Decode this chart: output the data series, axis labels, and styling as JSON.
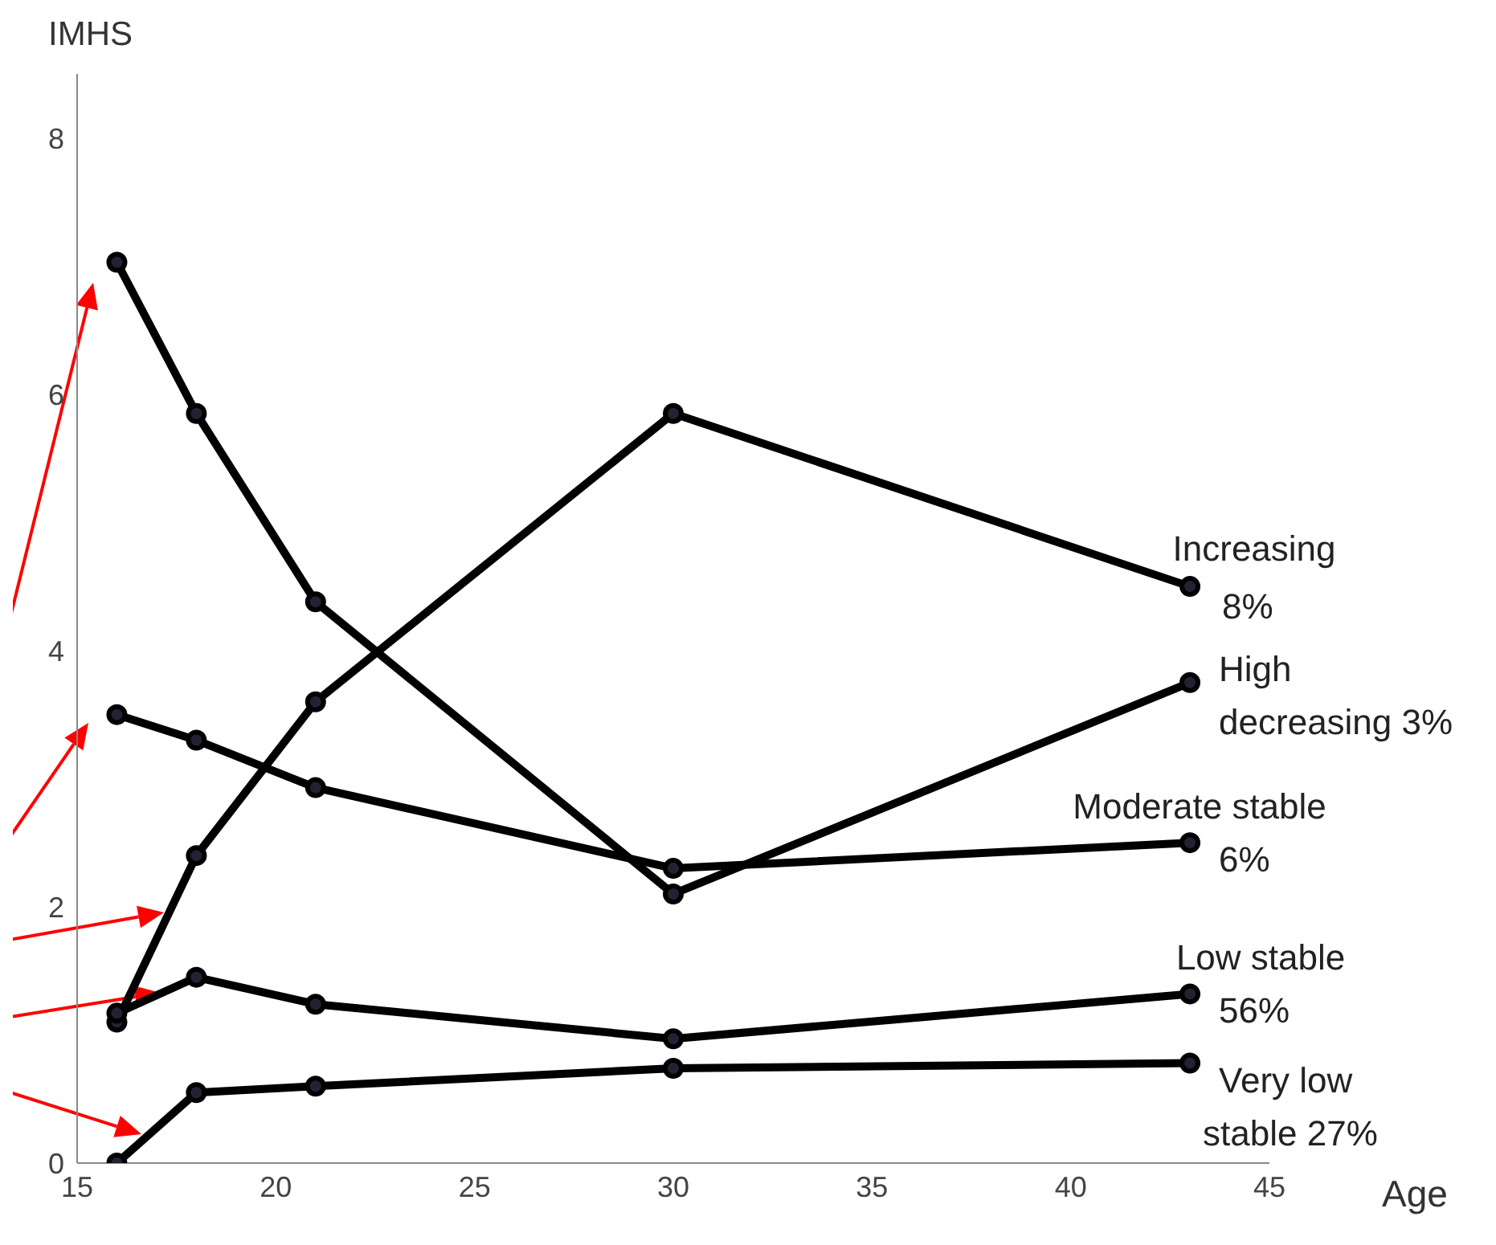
{
  "chart_data": {
    "type": "line",
    "xlabel": "Age",
    "ylabel": "IMHS",
    "x": [
      16,
      18,
      21,
      30,
      43
    ],
    "series": [
      {
        "name": "Increasing\n8%",
        "color": "#000000",
        "values": [
          1.1,
          2.4,
          3.6,
          5.85,
          4.5
        ]
      },
      {
        "name": "High\ndecreasing 3%",
        "color": "#000000",
        "values": [
          7.03,
          5.85,
          4.38,
          2.1,
          3.75
        ]
      },
      {
        "name": "Moderate stable\n6%",
        "color": "#000000",
        "values": [
          3.5,
          3.3,
          2.93,
          2.3,
          2.5
        ]
      },
      {
        "name": "Low stable\n56%",
        "color": "#000000",
        "values": [
          1.17,
          1.45,
          1.24,
          0.97,
          1.32
        ]
      },
      {
        "name": "Very low\nstable 27%",
        "color": "#000000",
        "values": [
          0,
          0.55,
          0.6,
          0.74,
          0.78
        ]
      }
    ],
    "xlim": [
      15,
      45
    ],
    "xticks": [
      15,
      20,
      25,
      30,
      35,
      40,
      45
    ],
    "ylim": [
      0,
      8.5
    ],
    "yticks": [
      0,
      2,
      4,
      6,
      8
    ],
    "grid": false,
    "legend": false,
    "marker": "circle",
    "line_style": "solid"
  }
}
